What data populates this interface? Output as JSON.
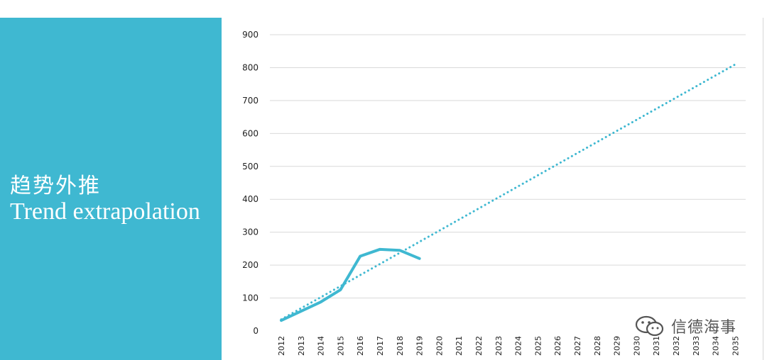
{
  "sidebar": {
    "title_cn": "趋势外推",
    "title_en": "Trend extrapolation"
  },
  "watermark": {
    "text": "信德海事",
    "icon": "wechat-icon"
  },
  "colors": {
    "panel": "#3fb8d1",
    "series": "#3fb8d1",
    "grid": "#d9d9d9",
    "axis_text": "#222222"
  },
  "chart_data": {
    "type": "line",
    "title": "",
    "xlabel": "",
    "ylabel": "",
    "ylim": [
      0,
      900
    ],
    "yticks": [
      0,
      100,
      200,
      300,
      400,
      500,
      600,
      700,
      800,
      900
    ],
    "grid": true,
    "legend": "none",
    "categories": [
      "2012",
      "2013",
      "2014",
      "2015",
      "2016",
      "2017",
      "2018",
      "2019",
      "2020",
      "2021",
      "2022",
      "2023",
      "2024",
      "2025",
      "2026",
      "2027",
      "2028",
      "2029",
      "2030",
      "2031",
      "2032",
      "2033",
      "2034",
      "2035"
    ],
    "series": [
      {
        "style": "solid",
        "x": [
          "2012",
          "2013",
          "2014",
          "2015",
          "2016",
          "2017",
          "2018",
          "2019"
        ],
        "values": [
          32,
          60,
          88,
          125,
          227,
          248,
          245,
          220
        ]
      },
      {
        "style": "dotted",
        "x": [
          "2012",
          "2035"
        ],
        "values": [
          35,
          810
        ]
      }
    ]
  }
}
